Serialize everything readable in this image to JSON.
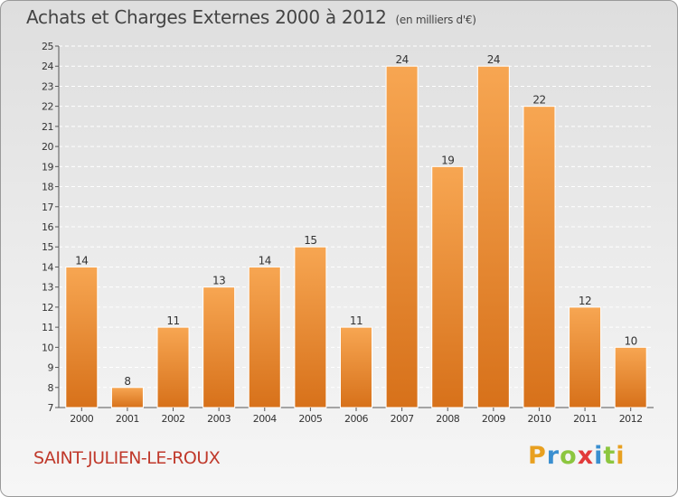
{
  "chart_data": {
    "type": "bar",
    "title": "Achats et Charges Externes 2000 à 2012",
    "unit_note": "(en milliers d'€)",
    "categories": [
      "2000",
      "2001",
      "2002",
      "2003",
      "2004",
      "2005",
      "2006",
      "2007",
      "2008",
      "2009",
      "2010",
      "2011",
      "2012"
    ],
    "values": [
      14,
      8,
      11,
      13,
      14,
      15,
      11,
      24,
      19,
      24,
      22,
      12,
      10
    ],
    "ylim": [
      7,
      25
    ],
    "yticks": [
      7,
      8,
      9,
      10,
      11,
      12,
      13,
      14,
      15,
      16,
      17,
      18,
      19,
      20,
      21,
      22,
      23,
      24,
      25
    ],
    "grid": true,
    "bar_color": "#f0a050"
  },
  "commune": "SAINT-JULIEN-LE-ROUX",
  "logo": {
    "letters": [
      "P",
      "r",
      "o",
      "x",
      "i",
      "t",
      "i"
    ],
    "colors": [
      "#e8a020",
      "#3a8fd0",
      "#8cc63f",
      "#e23a3a",
      "#3a8fd0",
      "#8cc63f",
      "#e8a020"
    ]
  }
}
